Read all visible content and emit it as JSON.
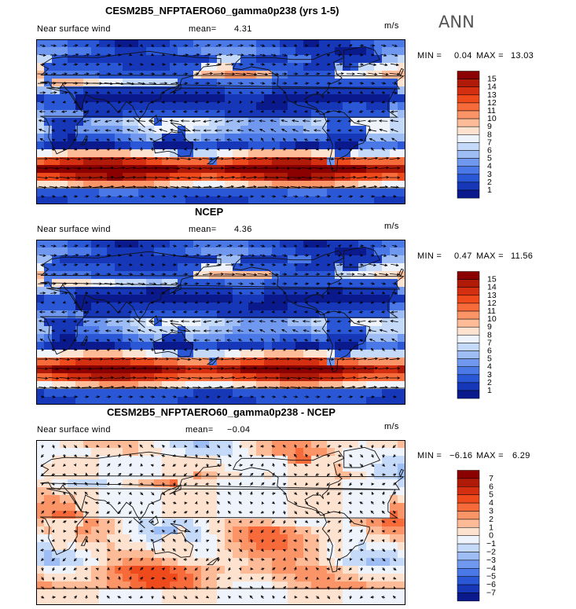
{
  "season": "ANN",
  "panels": [
    {
      "title": "CESM2B5_NFPTAERO60_gamma0p238 (yrs 1-5)",
      "variable": "Near surface wind",
      "mean_label": "mean=",
      "mean_value": "4.31",
      "units": "m/s",
      "min_label": "MIN =",
      "min_value": "0.04",
      "max_label": "MAX =",
      "max_value": "13.03",
      "kind": "abs",
      "colorbar": {
        "labels": [
          "15",
          "14",
          "13",
          "12",
          "11",
          "10",
          "9",
          "8",
          "7",
          "6",
          "5",
          "4",
          "3",
          "2",
          "1"
        ],
        "colors": [
          "#8b0000",
          "#b01a08",
          "#d42f10",
          "#ee4a1c",
          "#f76b3a",
          "#fb9466",
          "#fdbb98",
          "#fde2cf",
          "#eef3fc",
          "#c5d9f8",
          "#9ebdf4",
          "#6f98ee",
          "#4a78e6",
          "#2a57d6",
          "#1638b8",
          "#0a1a8c"
        ]
      }
    },
    {
      "title": "NCEP",
      "variable": "Near surface wind",
      "mean_label": "mean=",
      "mean_value": "4.36",
      "units": "m/s",
      "min_label": "MIN =",
      "min_value": "0.47",
      "max_label": "MAX =",
      "max_value": "11.56",
      "kind": "abs",
      "colorbar": {
        "labels": [
          "15",
          "14",
          "13",
          "12",
          "11",
          "10",
          "9",
          "8",
          "7",
          "6",
          "5",
          "4",
          "3",
          "2",
          "1"
        ],
        "colors": [
          "#8b0000",
          "#b01a08",
          "#d42f10",
          "#ee4a1c",
          "#f76b3a",
          "#fb9466",
          "#fdbb98",
          "#fde2cf",
          "#eef3fc",
          "#c5d9f8",
          "#9ebdf4",
          "#6f98ee",
          "#4a78e6",
          "#2a57d6",
          "#1638b8",
          "#0a1a8c"
        ]
      }
    },
    {
      "title": "CESM2B5_NFPTAERO60_gamma0p238 - NCEP",
      "variable": "Near surface wind",
      "mean_label": "mean=",
      "mean_value": "−0.04",
      "units": "m/s",
      "min_label": "MIN =",
      "min_value": "−6.16",
      "max_label": "MAX =",
      "max_value": "6.29",
      "kind": "diff",
      "colorbar": {
        "labels": [
          "7",
          "6",
          "5",
          "4",
          "3",
          "2",
          "1",
          "0",
          "−1",
          "−2",
          "−3",
          "−4",
          "−5",
          "−6",
          "−7"
        ],
        "colors": [
          "#8b0000",
          "#b01a08",
          "#d42f10",
          "#ee4a1c",
          "#f76b3a",
          "#fb9466",
          "#fdbb98",
          "#fde2cf",
          "#eef3fc",
          "#c5d9f8",
          "#9ebdf4",
          "#6f98ee",
          "#4a78e6",
          "#2a57d6",
          "#1638b8",
          "#0a1a8c"
        ]
      }
    }
  ]
}
